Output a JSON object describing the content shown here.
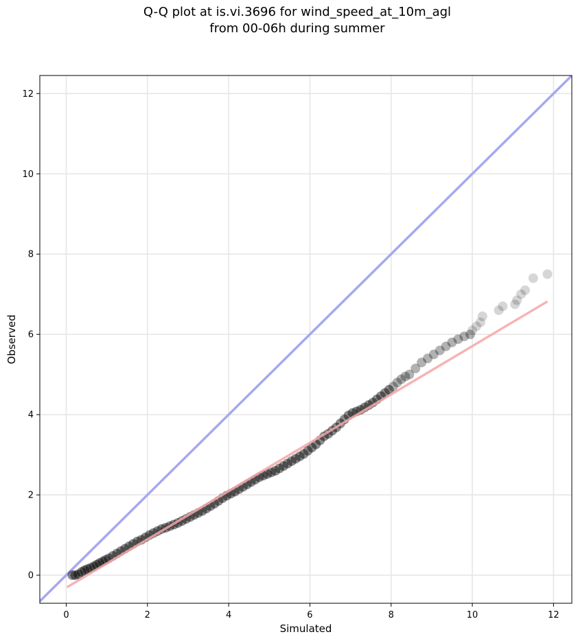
{
  "chart_data": {
    "type": "scatter",
    "title_line1": "Q-Q plot at is.vi.3696 for wind_speed_at_10m_agl",
    "title_line2": "from 00-06h during summer",
    "xlabel": "Simulated",
    "ylabel": "Observed",
    "xlim": [
      -0.65,
      12.45
    ],
    "ylim": [
      -0.7,
      12.45
    ],
    "xticks": [
      0,
      2,
      4,
      6,
      8,
      10,
      12
    ],
    "yticks": [
      0,
      2,
      4,
      6,
      8,
      10,
      12
    ],
    "grid": true,
    "reference_line": {
      "color": "#a6a8f0",
      "x": [
        -0.65,
        12.45
      ],
      "y": [
        -0.65,
        12.45
      ]
    },
    "fit_line": {
      "color": "#f4a7a7",
      "x": [
        0.02,
        11.85
      ],
      "y": [
        -0.3,
        6.82
      ]
    },
    "point_color": "#000000",
    "x": [
      0.15,
      0.22,
      0.3,
      0.38,
      0.45,
      0.52,
      0.6,
      0.68,
      0.75,
      0.82,
      0.9,
      0.97,
      1.05,
      1.15,
      1.25,
      1.35,
      1.45,
      1.55,
      1.65,
      1.75,
      1.85,
      1.95,
      2.05,
      2.15,
      2.25,
      2.35,
      2.45,
      2.55,
      2.65,
      2.75,
      2.85,
      2.95,
      3.05,
      3.15,
      3.25,
      3.35,
      3.45,
      3.55,
      3.65,
      3.75,
      3.85,
      3.95,
      4.05,
      4.15,
      4.25,
      4.35,
      4.45,
      4.55,
      4.65,
      4.75,
      4.85,
      4.95,
      5.05,
      5.15,
      5.25,
      5.35,
      5.45,
      5.55,
      5.65,
      5.75,
      5.85,
      5.95,
      6.05,
      6.15,
      6.25,
      6.35,
      6.45,
      6.55,
      6.65,
      6.75,
      6.85,
      6.95,
      7.05,
      7.15,
      7.25,
      7.35,
      7.45,
      7.55,
      7.65,
      7.75,
      7.85,
      7.95,
      8.05,
      8.15,
      8.25,
      8.35,
      8.45,
      8.6,
      8.75,
      8.9,
      9.05,
      9.2,
      9.35,
      9.5,
      9.65,
      9.8,
      9.95,
      10.0,
      10.1,
      10.2,
      10.25,
      10.65,
      10.75,
      11.05,
      11.1,
      11.2,
      11.3,
      11.5,
      11.85
    ],
    "y": [
      0.0,
      0.0,
      0.02,
      0.08,
      0.12,
      0.15,
      0.18,
      0.22,
      0.26,
      0.3,
      0.34,
      0.38,
      0.42,
      0.48,
      0.54,
      0.6,
      0.66,
      0.72,
      0.78,
      0.84,
      0.88,
      0.94,
      1.0,
      1.05,
      1.1,
      1.15,
      1.18,
      1.22,
      1.26,
      1.3,
      1.35,
      1.4,
      1.45,
      1.5,
      1.55,
      1.6,
      1.66,
      1.72,
      1.78,
      1.85,
      1.92,
      1.98,
      2.03,
      2.08,
      2.14,
      2.2,
      2.26,
      2.32,
      2.38,
      2.44,
      2.48,
      2.52,
      2.56,
      2.6,
      2.66,
      2.72,
      2.78,
      2.84,
      2.9,
      2.96,
      3.02,
      3.1,
      3.18,
      3.26,
      3.36,
      3.46,
      3.52,
      3.6,
      3.68,
      3.78,
      3.88,
      3.98,
      4.04,
      4.08,
      4.12,
      4.18,
      4.24,
      4.3,
      4.38,
      4.46,
      4.54,
      4.62,
      4.7,
      4.8,
      4.88,
      4.95,
      5.0,
      5.15,
      5.3,
      5.4,
      5.5,
      5.6,
      5.7,
      5.8,
      5.88,
      5.95,
      6.0,
      6.1,
      6.2,
      6.3,
      6.45,
      6.6,
      6.7,
      6.75,
      6.85,
      7.0,
      7.1,
      7.4,
      7.5
    ]
  }
}
